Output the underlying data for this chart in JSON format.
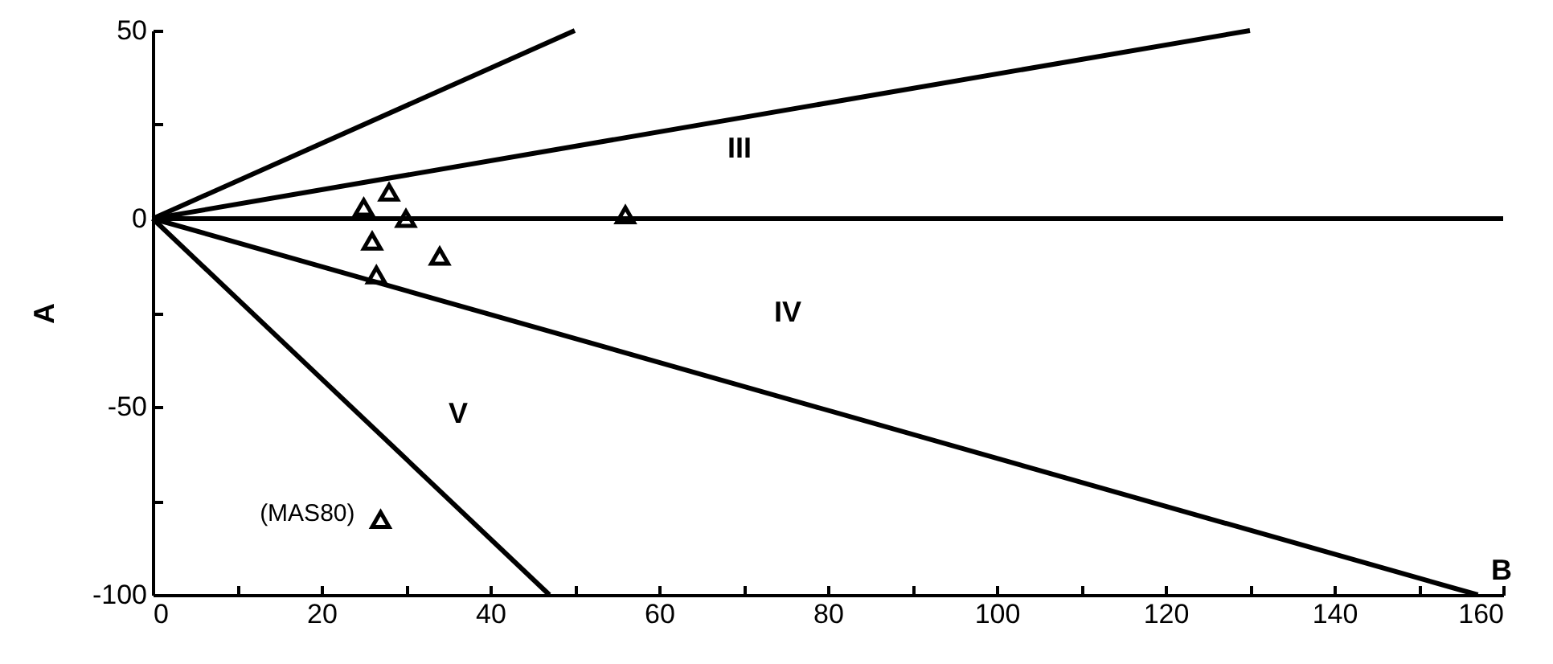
{
  "chart_data": {
    "type": "scatter",
    "xlabel": "B",
    "ylabel": "A",
    "xlim": [
      0,
      160
    ],
    "ylim": [
      -100,
      50
    ],
    "xticks": [
      0,
      {
        "value": 10,
        "label": null
      },
      20,
      {
        "value": 30,
        "label": null
      },
      40,
      {
        "value": 50,
        "label": null
      },
      60,
      {
        "value": 70,
        "label": null
      },
      80,
      {
        "value": 90,
        "label": null
      },
      100,
      {
        "value": 110,
        "label": null
      },
      120,
      {
        "value": 130,
        "label": null
      },
      140,
      {
        "value": 150,
        "label": null
      },
      160
    ],
    "yticks": [
      -100,
      {
        "value": -75,
        "label": null
      },
      -50,
      {
        "value": -25,
        "label": null
      },
      0,
      {
        "value": 25,
        "label": null
      },
      50
    ],
    "grid": false,
    "series": [
      {
        "type": "line",
        "color": "#000000",
        "line_style": "solid",
        "marker": "none",
        "x": [
          0,
          50
        ],
        "values": [
          0,
          50
        ]
      },
      {
        "type": "line",
        "color": "#000000",
        "line_style": "solid",
        "marker": "none",
        "x": [
          0,
          130
        ],
        "values": [
          0,
          50
        ]
      },
      {
        "type": "line",
        "color": "#000000",
        "line_style": "solid",
        "marker": "none",
        "x": [
          0,
          160
        ],
        "values": [
          0,
          0
        ]
      },
      {
        "type": "line",
        "color": "#000000",
        "line_style": "solid",
        "marker": "none",
        "x": [
          0,
          157
        ],
        "values": [
          0,
          -100
        ]
      },
      {
        "type": "line",
        "color": "#000000",
        "line_style": "solid",
        "marker": "none",
        "x": [
          0,
          47
        ],
        "values": [
          0,
          -100
        ]
      },
      {
        "color": "#000000",
        "marker": "triangle",
        "x": [
          25,
          28,
          30,
          26,
          34,
          26.5,
          56,
          27
        ],
        "values": [
          3,
          7,
          0,
          -6,
          -10,
          -15,
          1,
          -80
        ]
      }
    ],
    "annotations": [
      "III",
      "IV",
      "V",
      {
        "text": "(MAS80)",
        "x": 27,
        "y": -80
      }
    ]
  }
}
